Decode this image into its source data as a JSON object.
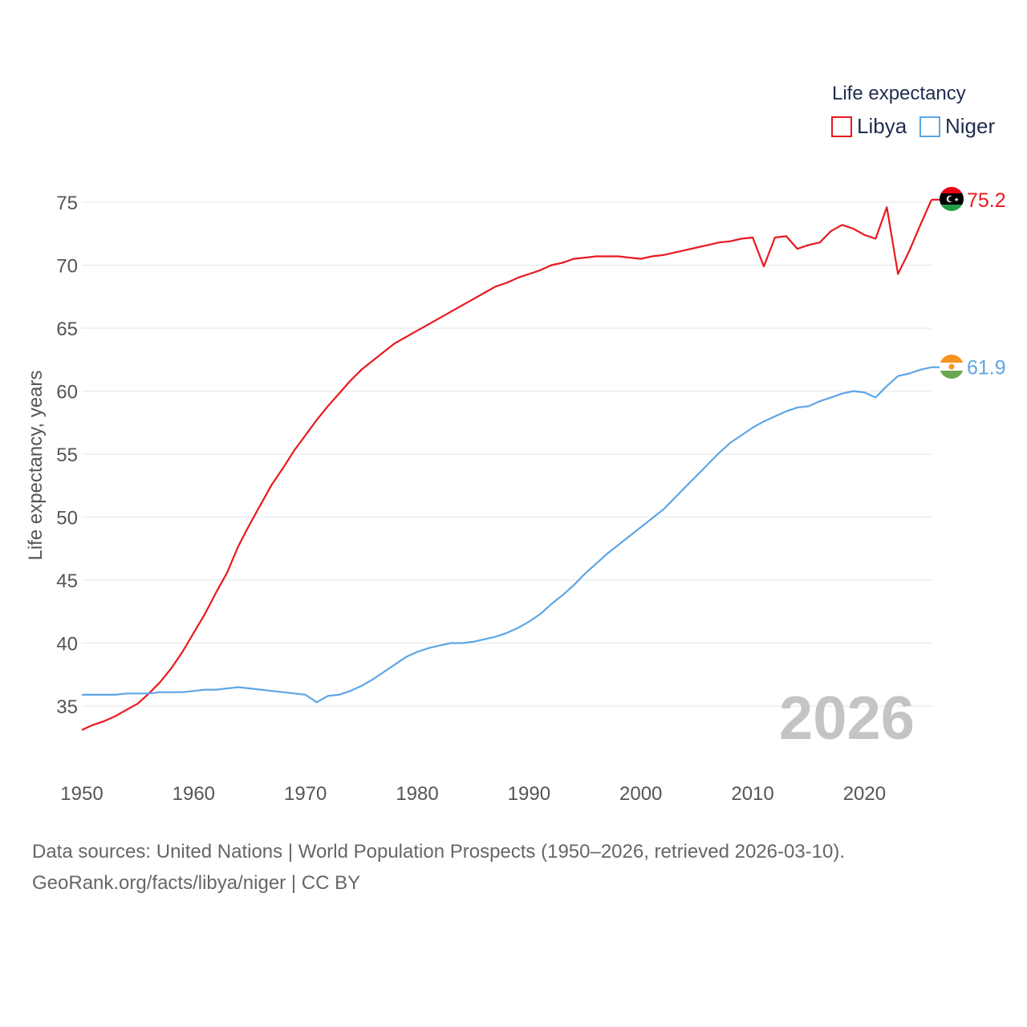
{
  "chart_data": {
    "type": "line",
    "title": "",
    "legend_title": "Life expectancy",
    "ylabel": "Life expectancy, years",
    "xlabel": "",
    "xlim": [
      1950,
      2026
    ],
    "ylim": [
      31,
      78
    ],
    "x_ticks": [
      1950,
      1960,
      1970,
      1980,
      1990,
      2000,
      2010,
      2020
    ],
    "y_ticks": [
      35,
      40,
      45,
      50,
      55,
      60,
      65,
      70,
      75
    ],
    "current_year_label": "2026",
    "grid": true,
    "legend_position": "top-right",
    "series": [
      {
        "name": "Libya",
        "color": "#e8191f",
        "end_label": "75.2",
        "flag": "libya-flag",
        "x": [
          1950,
          1951,
          1952,
          1953,
          1954,
          1955,
          1956,
          1957,
          1958,
          1959,
          1960,
          1961,
          1962,
          1963,
          1964,
          1965,
          1966,
          1967,
          1968,
          1969,
          1970,
          1971,
          1972,
          1973,
          1974,
          1975,
          1976,
          1977,
          1978,
          1979,
          1980,
          1981,
          1982,
          1983,
          1984,
          1985,
          1986,
          1987,
          1988,
          1989,
          1990,
          1991,
          1992,
          1993,
          1994,
          1995,
          1996,
          1997,
          1998,
          1999,
          2000,
          2001,
          2002,
          2003,
          2004,
          2005,
          2006,
          2007,
          2008,
          2009,
          2010,
          2011,
          2012,
          2013,
          2014,
          2015,
          2016,
          2017,
          2018,
          2019,
          2020,
          2021,
          2022,
          2023,
          2024,
          2025,
          2026
        ],
        "values": [
          33.1,
          33.5,
          33.8,
          34.2,
          34.7,
          35.2,
          36.0,
          36.9,
          38.0,
          39.3,
          40.8,
          42.3,
          44.0,
          45.6,
          47.7,
          49.4,
          51.0,
          52.6,
          53.9,
          55.3,
          56.5,
          57.7,
          58.8,
          59.8,
          60.8,
          61.7,
          62.4,
          63.1,
          63.8,
          64.3,
          64.8,
          65.3,
          65.8,
          66.3,
          66.8,
          67.3,
          67.8,
          68.3,
          68.6,
          69.0,
          69.3,
          69.6,
          70.0,
          70.2,
          70.5,
          70.6,
          70.7,
          70.7,
          70.7,
          70.6,
          70.5,
          70.7,
          70.8,
          71.0,
          71.2,
          71.4,
          71.6,
          71.8,
          71.9,
          72.1,
          72.2,
          69.9,
          72.2,
          72.3,
          71.3,
          71.6,
          71.8,
          72.7,
          73.2,
          72.9,
          72.4,
          72.1,
          74.6,
          69.3,
          71.1,
          73.2,
          75.2
        ]
      },
      {
        "name": "Niger",
        "color": "#5da6e6",
        "end_label": "61.9",
        "flag": "niger-flag",
        "x": [
          1950,
          1951,
          1952,
          1953,
          1954,
          1955,
          1956,
          1957,
          1958,
          1959,
          1960,
          1961,
          1962,
          1963,
          1964,
          1965,
          1966,
          1967,
          1968,
          1969,
          1970,
          1971,
          1972,
          1973,
          1974,
          1975,
          1976,
          1977,
          1978,
          1979,
          1980,
          1981,
          1982,
          1983,
          1984,
          1985,
          1986,
          1987,
          1988,
          1989,
          1990,
          1991,
          1992,
          1993,
          1994,
          1995,
          1996,
          1997,
          1998,
          1999,
          2000,
          2001,
          2002,
          2003,
          2004,
          2005,
          2006,
          2007,
          2008,
          2009,
          2010,
          2011,
          2012,
          2013,
          2014,
          2015,
          2016,
          2017,
          2018,
          2019,
          2020,
          2021,
          2022,
          2023,
          2024,
          2025,
          2026
        ],
        "values": [
          35.9,
          35.9,
          35.9,
          35.9,
          36.0,
          36.0,
          36.0,
          36.1,
          36.1,
          36.1,
          36.2,
          36.3,
          36.3,
          36.4,
          36.5,
          36.4,
          36.3,
          36.2,
          36.1,
          36.0,
          35.9,
          35.3,
          35.8,
          35.9,
          36.2,
          36.6,
          37.1,
          37.7,
          38.3,
          38.9,
          39.3,
          39.6,
          39.8,
          40.0,
          40.0,
          40.1,
          40.3,
          40.5,
          40.8,
          41.2,
          41.7,
          42.3,
          43.1,
          43.8,
          44.6,
          45.5,
          46.3,
          47.1,
          47.8,
          48.5,
          49.2,
          49.9,
          50.6,
          51.5,
          52.4,
          53.3,
          54.2,
          55.1,
          55.9,
          56.5,
          57.1,
          57.6,
          58.0,
          58.4,
          58.7,
          58.8,
          59.2,
          59.5,
          59.8,
          60.0,
          59.9,
          59.5,
          60.4,
          61.2,
          61.4,
          61.7,
          61.9
        ]
      }
    ]
  },
  "source": {
    "line1": "Data sources: United Nations | World Population Prospects (1950–2026, retrieved 2026-03-10).",
    "line2": "GeoRank.org/facts/libya/niger | CC BY"
  }
}
